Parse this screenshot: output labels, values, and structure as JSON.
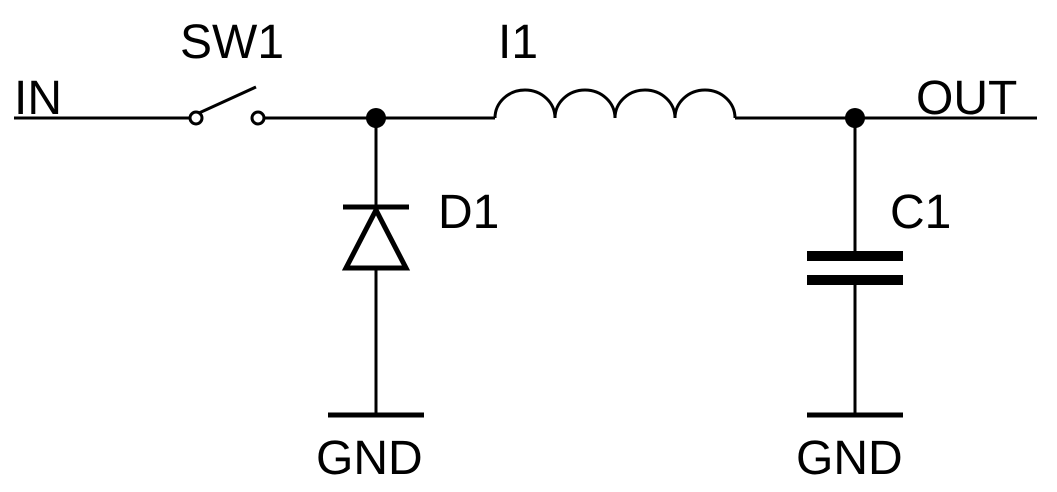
{
  "schematic": {
    "input_label": "IN",
    "output_label": "OUT",
    "switch_label": "SW1",
    "inductor_label": "I1",
    "diode_label": "D1",
    "capacitor_label": "C1",
    "diode_ground_label": "GND",
    "capacitor_ground_label": "GND"
  },
  "colors": {
    "line": "#000000",
    "background": "#ffffff"
  }
}
